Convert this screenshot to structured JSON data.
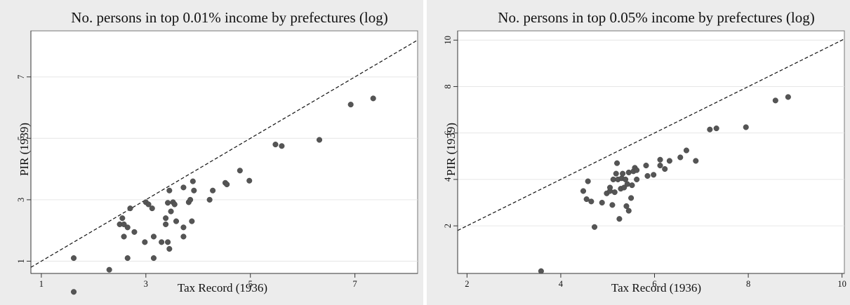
{
  "chart_data": [
    {
      "type": "scatter",
      "title": "No. persons in top 0.01% income by prefectures (log)",
      "xlabel": "Tax Record (1936)",
      "ylabel": "PIR (1939)",
      "xlim": [
        0.8,
        8.2
      ],
      "ylim": [
        0.6,
        8.5
      ],
      "xticks": [
        1,
        3,
        5,
        7
      ],
      "yticks": [
        1,
        3,
        5,
        7
      ],
      "grid": "horizontal",
      "reference_line": "45-degree dashed",
      "points": [
        [
          1.62,
          0.0
        ],
        [
          1.62,
          1.1
        ],
        [
          2.3,
          0.72
        ],
        [
          2.5,
          2.2
        ],
        [
          2.55,
          2.4
        ],
        [
          2.58,
          2.2
        ],
        [
          2.58,
          1.8
        ],
        [
          2.65,
          2.1
        ],
        [
          2.65,
          1.1
        ],
        [
          2.7,
          2.72
        ],
        [
          2.78,
          1.95
        ],
        [
          2.98,
          1.62
        ],
        [
          3.0,
          2.92
        ],
        [
          3.05,
          2.85
        ],
        [
          3.12,
          2.72
        ],
        [
          3.15,
          1.8
        ],
        [
          3.15,
          1.1
        ],
        [
          3.3,
          1.62
        ],
        [
          3.38,
          2.4
        ],
        [
          3.38,
          2.2
        ],
        [
          3.42,
          2.9
        ],
        [
          3.42,
          1.62
        ],
        [
          3.45,
          3.3
        ],
        [
          3.45,
          1.4
        ],
        [
          3.48,
          2.62
        ],
        [
          3.52,
          2.92
        ],
        [
          3.55,
          2.85
        ],
        [
          3.58,
          2.3
        ],
        [
          3.72,
          3.4
        ],
        [
          3.72,
          1.8
        ],
        [
          3.72,
          2.1
        ],
        [
          3.82,
          2.92
        ],
        [
          3.85,
          3.0
        ],
        [
          3.88,
          2.3
        ],
        [
          3.9,
          3.6
        ],
        [
          3.92,
          3.3
        ],
        [
          4.22,
          3.0
        ],
        [
          4.28,
          3.3
        ],
        [
          4.52,
          3.55
        ],
        [
          4.55,
          3.5
        ],
        [
          4.8,
          3.95
        ],
        [
          4.98,
          3.62
        ],
        [
          5.48,
          4.8
        ],
        [
          5.6,
          4.75
        ],
        [
          6.32,
          4.95
        ],
        [
          6.92,
          6.1
        ],
        [
          7.35,
          6.3
        ]
      ]
    },
    {
      "type": "scatter",
      "title": "No. persons in top 0.05% income by prefectures (log)",
      "xlabel": "Tax Record (1936)",
      "ylabel": "PIR (1939)",
      "xlim": [
        1.8,
        10.05
      ],
      "ylim": [
        -0.05,
        10.4
      ],
      "xticks": [
        2,
        4,
        6,
        8,
        10
      ],
      "yticks": [
        2,
        4,
        6,
        8,
        10
      ],
      "grid": "horizontal",
      "reference_line": "45-degree dashed",
      "points": [
        [
          3.58,
          0.05
        ],
        [
          4.48,
          3.5
        ],
        [
          4.55,
          3.15
        ],
        [
          4.58,
          3.92
        ],
        [
          4.65,
          3.05
        ],
        [
          4.72,
          1.95
        ],
        [
          4.88,
          3.0
        ],
        [
          4.98,
          3.4
        ],
        [
          5.05,
          3.5
        ],
        [
          5.05,
          3.65
        ],
        [
          5.1,
          2.9
        ],
        [
          5.12,
          4.0
        ],
        [
          5.15,
          3.45
        ],
        [
          5.18,
          4.25
        ],
        [
          5.2,
          4.7
        ],
        [
          5.22,
          4.0
        ],
        [
          5.25,
          2.3
        ],
        [
          5.28,
          3.6
        ],
        [
          5.3,
          4.05
        ],
        [
          5.32,
          4.25
        ],
        [
          5.35,
          3.65
        ],
        [
          5.38,
          4.0
        ],
        [
          5.4,
          2.85
        ],
        [
          5.42,
          3.8
        ],
        [
          5.45,
          4.3
        ],
        [
          5.45,
          2.65
        ],
        [
          5.5,
          3.2
        ],
        [
          5.52,
          3.75
        ],
        [
          5.55,
          4.35
        ],
        [
          5.58,
          4.5
        ],
        [
          5.62,
          4.4
        ],
        [
          5.62,
          4.0
        ],
        [
          5.82,
          4.6
        ],
        [
          5.85,
          4.15
        ],
        [
          5.98,
          4.2
        ],
        [
          6.12,
          4.6
        ],
        [
          6.12,
          4.85
        ],
        [
          6.22,
          4.45
        ],
        [
          6.32,
          4.8
        ],
        [
          6.55,
          4.95
        ],
        [
          6.68,
          5.25
        ],
        [
          6.88,
          4.8
        ],
        [
          7.18,
          6.15
        ],
        [
          7.32,
          6.2
        ],
        [
          7.95,
          6.25
        ],
        [
          8.58,
          7.4
        ],
        [
          8.85,
          7.55
        ]
      ]
    }
  ]
}
